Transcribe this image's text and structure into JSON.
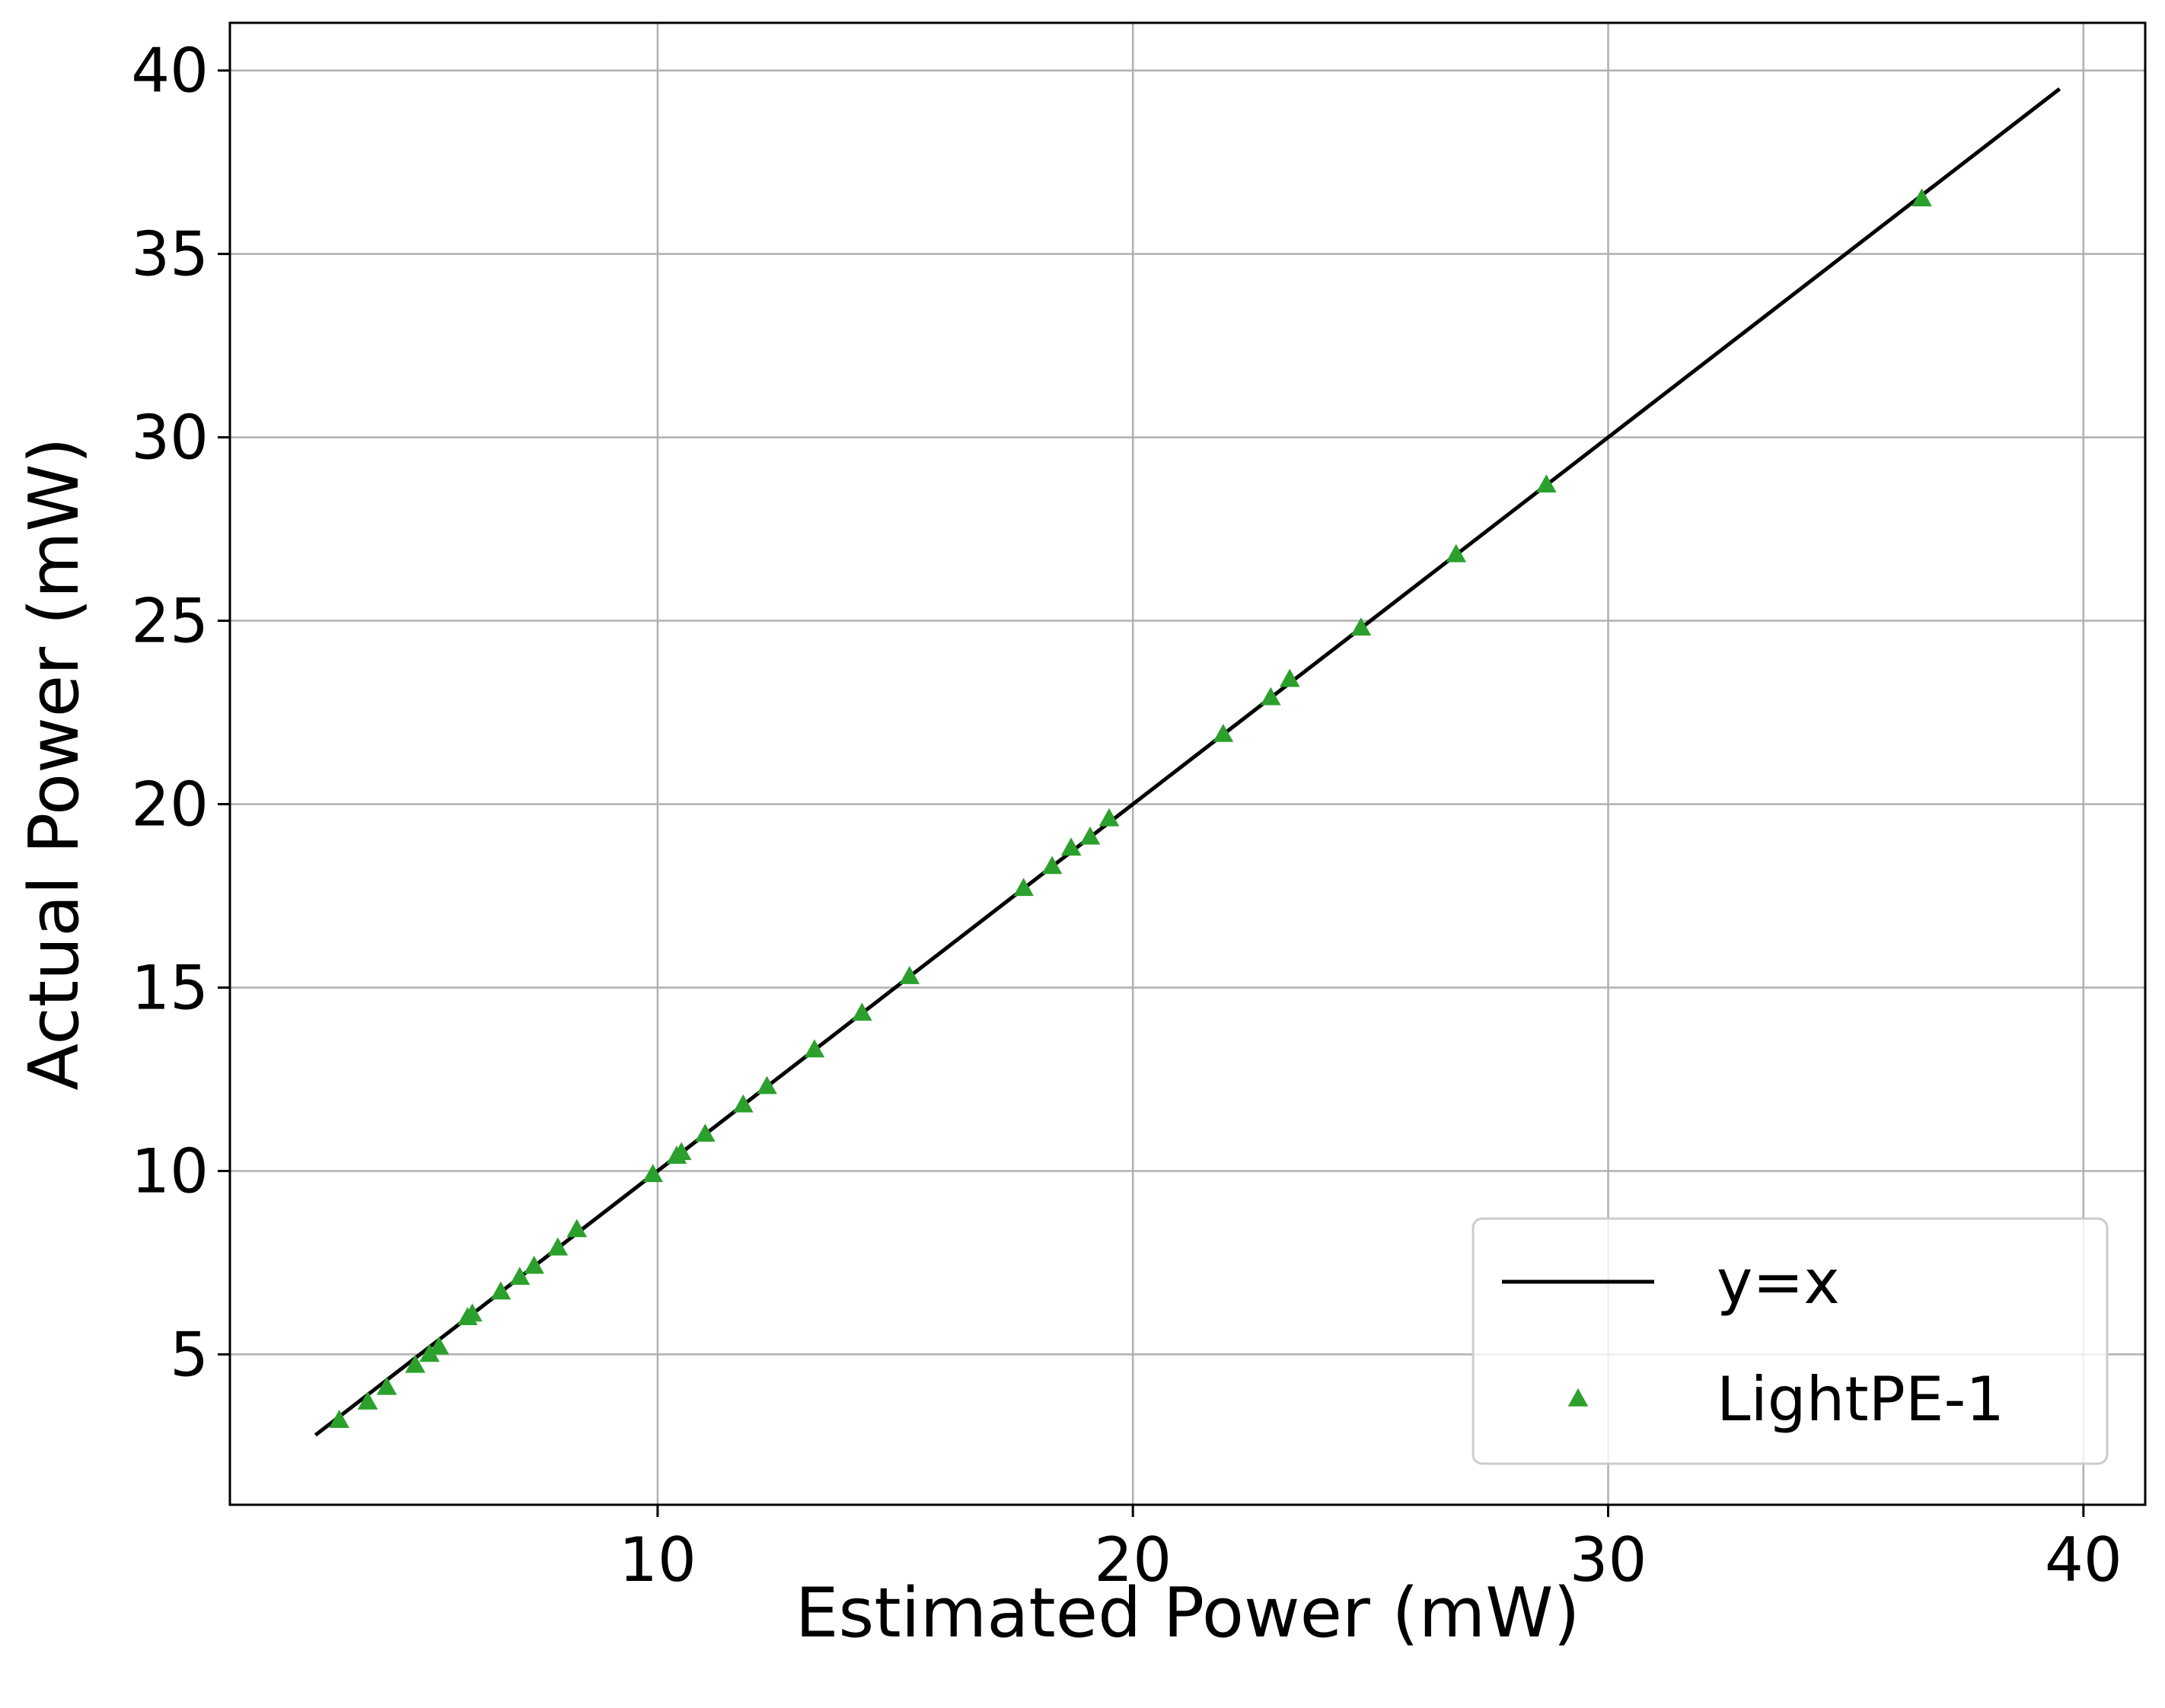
{
  "chart_data": {
    "type": "scatter",
    "title": "",
    "xlabel": "Estimated Power (mW)",
    "ylabel": "Actual Power (mW)",
    "xlim": [
      1,
      41.3
    ],
    "ylim": [
      0.9,
      41.3
    ],
    "xticks": [
      10,
      20,
      30,
      40
    ],
    "yticks": [
      5,
      10,
      15,
      20,
      25,
      30,
      35,
      40
    ],
    "grid": true,
    "legend_position": "lower right",
    "series": [
      {
        "name": "y=x",
        "kind": "line",
        "color": "#000000",
        "x": [
          2.8,
          39.5
        ],
        "y": [
          2.8,
          39.5
        ]
      },
      {
        "name": "LightPE-1",
        "kind": "scatter",
        "marker": "triangle",
        "color": "#2ca02c",
        "points": [
          [
            3.3,
            3.2
          ],
          [
            3.9,
            3.7
          ],
          [
            4.3,
            4.1
          ],
          [
            4.9,
            4.7
          ],
          [
            5.2,
            5.0
          ],
          [
            5.4,
            5.2
          ],
          [
            6.0,
            6.0
          ],
          [
            6.1,
            6.1
          ],
          [
            6.7,
            6.7
          ],
          [
            7.1,
            7.1
          ],
          [
            7.4,
            7.4
          ],
          [
            7.9,
            7.9
          ],
          [
            8.3,
            8.4
          ],
          [
            9.9,
            9.9
          ],
          [
            10.4,
            10.4
          ],
          [
            10.5,
            10.5
          ],
          [
            11.0,
            11.0
          ],
          [
            11.8,
            11.8
          ],
          [
            12.3,
            12.3
          ],
          [
            13.3,
            13.3
          ],
          [
            14.3,
            14.3
          ],
          [
            15.3,
            15.3
          ],
          [
            17.7,
            17.7
          ],
          [
            18.3,
            18.3
          ],
          [
            18.7,
            18.8
          ],
          [
            19.1,
            19.1
          ],
          [
            19.5,
            19.6
          ],
          [
            21.9,
            21.9
          ],
          [
            22.9,
            22.9
          ],
          [
            23.3,
            23.4
          ],
          [
            24.8,
            24.8
          ],
          [
            26.8,
            26.8
          ],
          [
            28.7,
            28.7
          ],
          [
            36.6,
            36.5
          ]
        ]
      }
    ]
  }
}
